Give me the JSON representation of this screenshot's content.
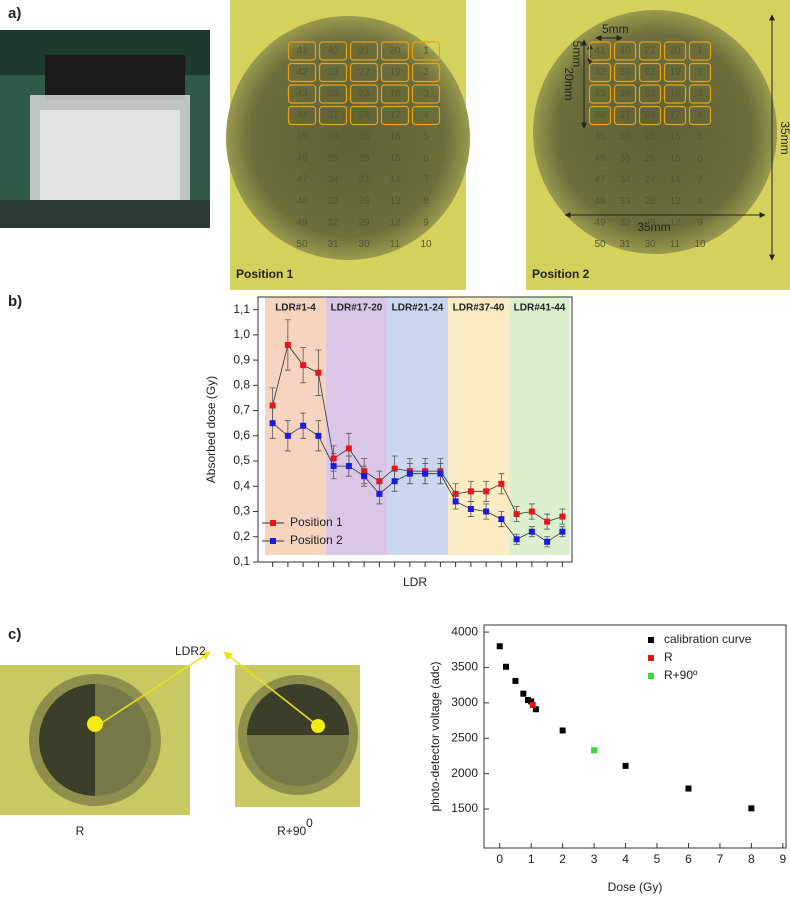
{
  "panels": {
    "a": "a)",
    "b": "b)",
    "c": "c)"
  },
  "photos": {
    "position_1": "Position 1",
    "position_2": "Position 2",
    "ldr_grid": [
      [
        41,
        40,
        21,
        20,
        1
      ],
      [
        42,
        39,
        22,
        19,
        2
      ],
      [
        43,
        38,
        23,
        18,
        3
      ],
      [
        44,
        37,
        24,
        17,
        4
      ],
      [
        45,
        36,
        25,
        16,
        5
      ],
      [
        46,
        35,
        26,
        15,
        6
      ],
      [
        47,
        34,
        27,
        14,
        7
      ],
      [
        48,
        33,
        28,
        13,
        8
      ],
      [
        49,
        32,
        29,
        12,
        9
      ],
      [
        50,
        31,
        30,
        11,
        10
      ]
    ],
    "dimensions": {
      "cell_width": "5mm",
      "cell_height": "5mm",
      "block": "20mm",
      "height": "35mm",
      "width": "35mm"
    },
    "ldr_label": "LDR2",
    "orientation_1": "R",
    "orientation_2": {
      "base": "R+90",
      "superscript": "0"
    }
  },
  "chart_data": [
    {
      "type": "line",
      "y_label": "Absorbed dose (Gy)",
      "x_label": "LDR",
      "categories": [
        null,
        null,
        null,
        null,
        null,
        null,
        null,
        null,
        null,
        null,
        null,
        null,
        null,
        null,
        null,
        null,
        null,
        null,
        null,
        null
      ],
      "ylim": [
        0.1,
        1.15
      ],
      "yticks": [
        {
          "value": 0.1,
          "label": "0,1"
        },
        {
          "value": 0.2,
          "label": "0,2"
        },
        {
          "value": 0.3,
          "label": "0,3"
        },
        {
          "value": 0.4,
          "label": "0,4"
        },
        {
          "value": 0.5,
          "label": "0,5"
        },
        {
          "value": 0.6,
          "label": "0,6"
        },
        {
          "value": 0.7,
          "label": "0,7"
        },
        {
          "value": 0.8,
          "label": "0,8"
        },
        {
          "value": 0.9,
          "label": "0,9"
        },
        {
          "value": 1.0,
          "label": "1,0"
        },
        {
          "value": 1.1,
          "label": "1,1"
        }
      ],
      "regions": [
        {
          "label": "LDR#1-4",
          "color": "#f6d4c0"
        },
        {
          "label": "LDR#17-20",
          "color": "#dac7e7"
        },
        {
          "label": "LDR#21-24",
          "color": "#cad7ef"
        },
        {
          "label": "LDR#37-40",
          "color": "#fcecc3"
        },
        {
          "label": "LDR#41-44",
          "color": "#dcf0cf"
        }
      ],
      "series": [
        {
          "name": "Position 1",
          "color": "#e8141c",
          "values": [
            0.72,
            0.96,
            0.88,
            0.85,
            0.51,
            0.55,
            0.46,
            0.42,
            0.47,
            0.46,
            0.46,
            0.46,
            0.37,
            0.38,
            0.38,
            0.41,
            0.29,
            0.3,
            0.26,
            0.28
          ],
          "errors": [
            0.07,
            0.1,
            0.07,
            0.09,
            0.05,
            0.06,
            0.05,
            0.04,
            0.05,
            0.05,
            0.05,
            0.05,
            0.04,
            0.04,
            0.04,
            0.04,
            0.03,
            0.03,
            0.03,
            0.03
          ]
        },
        {
          "name": "Position 2",
          "color": "#1a1ae0",
          "values": [
            0.65,
            0.6,
            0.64,
            0.6,
            0.48,
            0.48,
            0.44,
            0.37,
            0.42,
            0.45,
            0.45,
            0.45,
            0.34,
            0.31,
            0.3,
            0.27,
            0.19,
            0.22,
            0.18,
            0.22
          ],
          "errors": [
            0.06,
            0.06,
            0.05,
            0.06,
            0.05,
            0.04,
            0.04,
            0.04,
            0.04,
            0.04,
            0.04,
            0.04,
            0.03,
            0.03,
            0.03,
            0.03,
            0.02,
            0.02,
            0.02,
            0.02
          ]
        }
      ],
      "legend": "lower left"
    },
    {
      "type": "scatter",
      "x_label": "Dose (Gy)",
      "y_label": "photo-detector voltage (adc)",
      "xlim": [
        -0.5,
        9.1
      ],
      "ylim": [
        950,
        4100
      ],
      "xticks": [
        0,
        1,
        2,
        3,
        4,
        5,
        6,
        7,
        8,
        9
      ],
      "yticks": [
        1500,
        2000,
        2500,
        3000,
        3500,
        4000
      ],
      "series": [
        {
          "name": "calibration curve",
          "color": "#000000",
          "x": [
            0,
            0.2,
            0.5,
            0.75,
            0.9,
            1,
            1.15,
            2,
            4,
            6,
            8
          ],
          "values": [
            3800,
            3510,
            3310,
            3130,
            3040,
            3020,
            2910,
            2610,
            2110,
            1790,
            1510
          ]
        },
        {
          "name": "R",
          "color": "#e8141c",
          "x": [
            1.05
          ],
          "values": [
            2970
          ]
        },
        {
          "name": "R+90º",
          "color": "#33dd33",
          "x": [
            3
          ],
          "values": [
            2330
          ]
        }
      ],
      "legend": "upper right"
    }
  ]
}
